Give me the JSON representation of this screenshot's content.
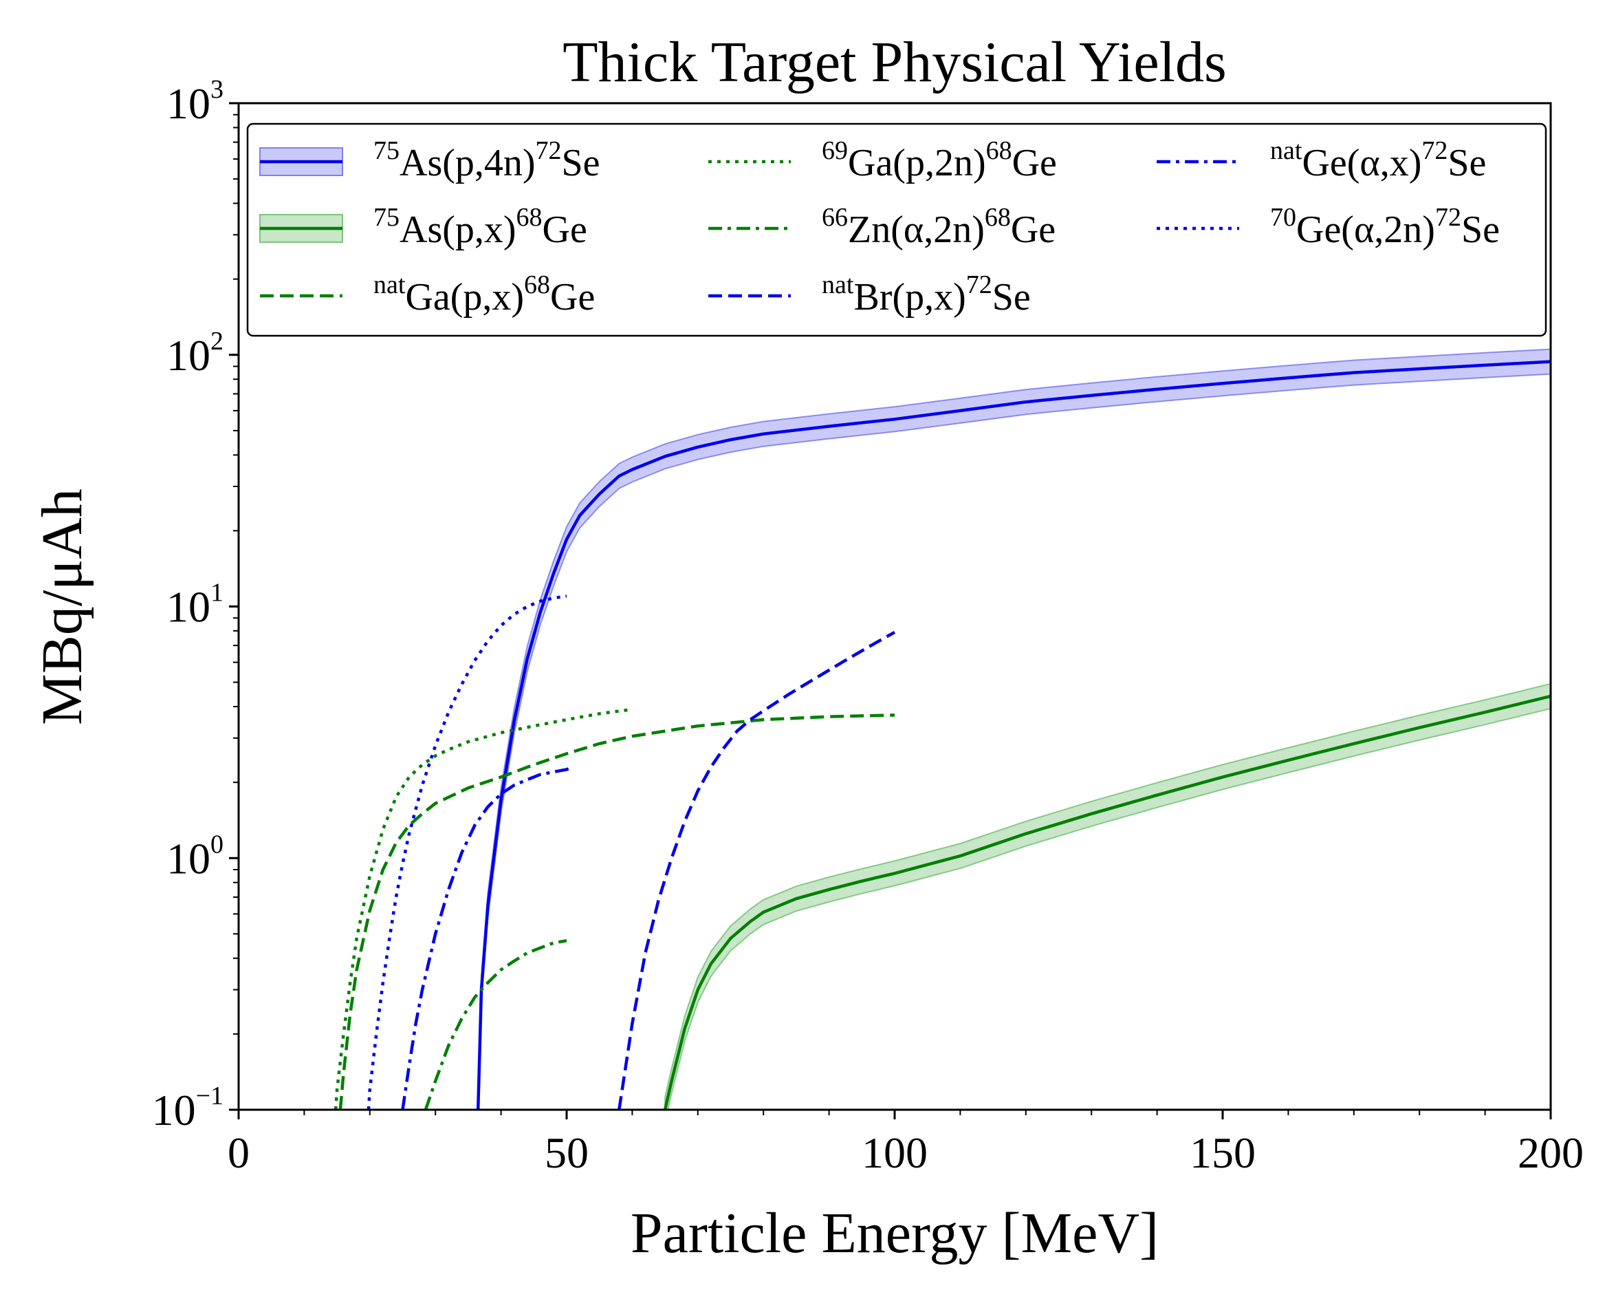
{
  "chart_data": {
    "type": "line",
    "title": "Thick Target Physical Yields",
    "xlabel": "Particle Energy [MeV]",
    "ylabel": "MBq/μAh",
    "xlim": [
      0,
      200
    ],
    "ylim": [
      0.1,
      1000
    ],
    "yscale": "log",
    "x_ticks": [
      {
        "value": 0,
        "label": "0"
      },
      {
        "value": 50,
        "label": "50"
      },
      {
        "value": 100,
        "label": "100"
      },
      {
        "value": 150,
        "label": "150"
      },
      {
        "value": 200,
        "label": "200"
      }
    ],
    "y_ticks": [
      {
        "value": 0.1,
        "base": "10",
        "exp": "−1"
      },
      {
        "value": 1,
        "base": "10",
        "exp": "0"
      },
      {
        "value": 10,
        "base": "10",
        "exp": "1"
      },
      {
        "value": 100,
        "base": "10",
        "exp": "2"
      },
      {
        "value": 1000,
        "base": "10",
        "exp": "3"
      }
    ],
    "legend_position": "top",
    "series": [
      {
        "id": "as-p4n-se72",
        "name_parts": [
          {
            "t": "75",
            "s": true
          },
          {
            "t": "As(p,4n)"
          },
          {
            "t": "72",
            "s": true
          },
          {
            "t": "Se"
          }
        ],
        "color": "#0000ee",
        "style": "solid",
        "band": true,
        "band_color": "#8080f0",
        "x": [
          36.5,
          37,
          38,
          40,
          42,
          44,
          46,
          48,
          50,
          52,
          55,
          58,
          60,
          65,
          70,
          75,
          80,
          90,
          100,
          110,
          120,
          130,
          140,
          150,
          160,
          170,
          180,
          190,
          200
        ],
        "y": [
          0.1,
          0.3,
          0.65,
          1.7,
          3.5,
          6.2,
          9.5,
          13.5,
          18.5,
          23,
          28,
          33,
          35,
          39.5,
          43,
          46,
          48.5,
          52,
          55.5,
          60,
          65,
          69,
          73,
          77,
          81,
          85,
          88,
          91,
          94
        ]
      },
      {
        "id": "as-px-ge68",
        "name_parts": [
          {
            "t": "75",
            "s": true
          },
          {
            "t": "As(p,x)"
          },
          {
            "t": "68",
            "s": true
          },
          {
            "t": "Ge"
          }
        ],
        "color": "#008000",
        "style": "solid",
        "band": true,
        "band_color": "#7cc47c",
        "x": [
          65,
          66,
          68,
          70,
          72,
          75,
          78,
          80,
          85,
          90,
          95,
          100,
          110,
          120,
          130,
          140,
          150,
          160,
          170,
          180,
          190,
          200
        ],
        "y": [
          0.1,
          0.13,
          0.21,
          0.3,
          0.38,
          0.48,
          0.56,
          0.61,
          0.69,
          0.75,
          0.81,
          0.87,
          1.02,
          1.25,
          1.5,
          1.78,
          2.1,
          2.45,
          2.85,
          3.3,
          3.8,
          4.4
        ]
      },
      {
        "id": "natga-px-ge68",
        "name_parts": [
          {
            "t": "nat",
            "s": true
          },
          {
            "t": "Ga(p,x)"
          },
          {
            "t": "68",
            "s": true
          },
          {
            "t": "Ge"
          }
        ],
        "color": "#008000",
        "style": "dashed",
        "band": false,
        "x": [
          15.5,
          16,
          17,
          18,
          20,
          22,
          24,
          26,
          28,
          30,
          35,
          40,
          45,
          50,
          55,
          60,
          70,
          80,
          90,
          100
        ],
        "y": [
          0.1,
          0.14,
          0.24,
          0.36,
          0.62,
          0.9,
          1.15,
          1.35,
          1.5,
          1.65,
          1.9,
          2.1,
          2.35,
          2.6,
          2.85,
          3.05,
          3.35,
          3.55,
          3.65,
          3.7
        ]
      },
      {
        "id": "ga69-p2n-ge68",
        "name_parts": [
          {
            "t": "69",
            "s": true
          },
          {
            "t": "Ga(p,2n)"
          },
          {
            "t": "68",
            "s": true
          },
          {
            "t": "Ge"
          }
        ],
        "color": "#008000",
        "style": "dotted",
        "band": false,
        "x": [
          14.8,
          15,
          16,
          17,
          18,
          20,
          22,
          24,
          26,
          28,
          30,
          32,
          35,
          40,
          45,
          50,
          55,
          60
        ],
        "y": [
          0.1,
          0.12,
          0.2,
          0.32,
          0.48,
          0.85,
          1.3,
          1.75,
          2.1,
          2.35,
          2.55,
          2.7,
          2.9,
          3.15,
          3.35,
          3.55,
          3.75,
          3.9
        ]
      },
      {
        "id": "zn66-a2n-ge68",
        "name_parts": [
          {
            "t": "66",
            "s": true
          },
          {
            "t": "Zn(α,2n)"
          },
          {
            "t": "68",
            "s": true
          },
          {
            "t": "Ge"
          }
        ],
        "color": "#008000",
        "style": "dashdot",
        "band": false,
        "x": [
          28.5,
          30,
          32,
          34,
          36,
          38,
          40,
          42,
          44,
          46,
          48,
          50
        ],
        "y": [
          0.1,
          0.13,
          0.18,
          0.23,
          0.28,
          0.32,
          0.36,
          0.39,
          0.42,
          0.44,
          0.46,
          0.47
        ]
      },
      {
        "id": "natbr-px-se72",
        "name_parts": [
          {
            "t": "nat",
            "s": true
          },
          {
            "t": "Br(p,x)"
          },
          {
            "t": "72",
            "s": true
          },
          {
            "t": "Se"
          }
        ],
        "color": "#0000ee",
        "style": "dashed",
        "band": false,
        "x": [
          58,
          60,
          62,
          64,
          66,
          68,
          70,
          72,
          74,
          76,
          78,
          80,
          84,
          88,
          92,
          96,
          100
        ],
        "y": [
          0.1,
          0.22,
          0.42,
          0.68,
          1.0,
          1.4,
          1.85,
          2.3,
          2.75,
          3.2,
          3.55,
          3.85,
          4.5,
          5.2,
          6.0,
          6.9,
          7.9
        ]
      },
      {
        "id": "natge-ax-se72",
        "name_parts": [
          {
            "t": "nat",
            "s": true
          },
          {
            "t": "Ge(α,x)"
          },
          {
            "t": "72",
            "s": true
          },
          {
            "t": "Se"
          }
        ],
        "color": "#0000ee",
        "style": "dashdot",
        "band": false,
        "x": [
          25,
          26,
          27,
          28,
          30,
          32,
          34,
          36,
          38,
          40,
          42,
          44,
          46,
          48,
          50,
          51
        ],
        "y": [
          0.1,
          0.15,
          0.22,
          0.3,
          0.5,
          0.75,
          1.05,
          1.35,
          1.6,
          1.8,
          1.95,
          2.05,
          2.15,
          2.2,
          2.25,
          2.3
        ]
      },
      {
        "id": "ge70-a2n-se72",
        "name_parts": [
          {
            "t": "70",
            "s": true
          },
          {
            "t": "Ge(α,2n)"
          },
          {
            "t": "72",
            "s": true
          },
          {
            "t": "Se"
          }
        ],
        "color": "#0000ee",
        "style": "dotted",
        "band": false,
        "x": [
          19.8,
          20,
          21,
          22,
          23,
          24,
          25,
          26,
          28,
          30,
          32,
          34,
          36,
          38,
          40,
          42,
          44,
          46,
          48,
          50
        ],
        "y": [
          0.1,
          0.12,
          0.2,
          0.32,
          0.48,
          0.7,
          0.95,
          1.25,
          1.95,
          2.8,
          3.8,
          4.9,
          6.1,
          7.3,
          8.4,
          9.3,
          10.0,
          10.5,
          10.8,
          11.0
        ]
      }
    ]
  }
}
